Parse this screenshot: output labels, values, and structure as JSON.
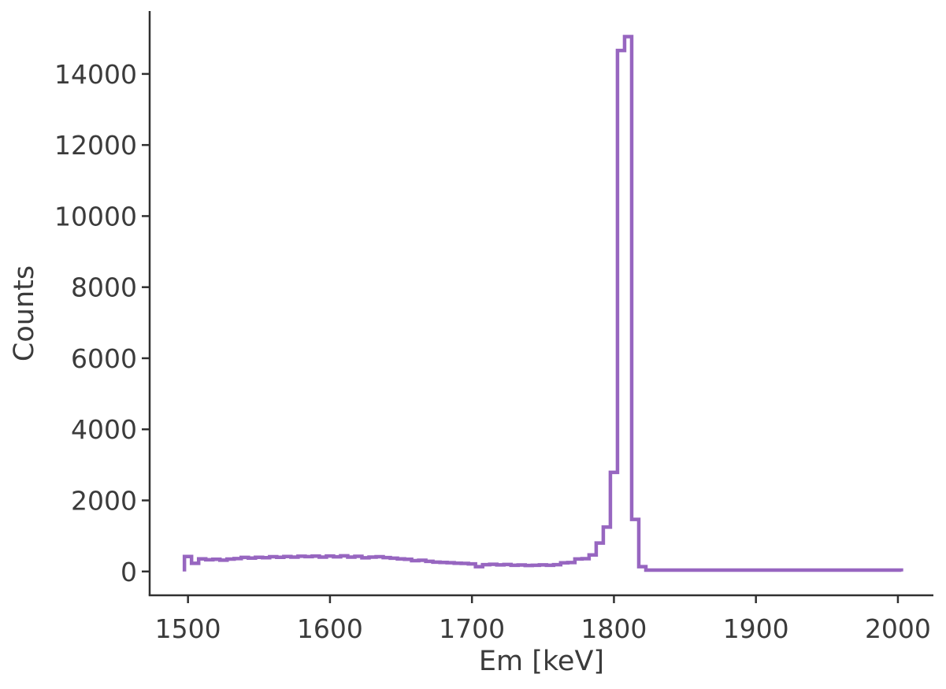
{
  "chart_data": {
    "type": "line",
    "subtype": "step-histogram",
    "title": "",
    "xlabel": "Em [keV]",
    "ylabel": "Counts",
    "legend": null,
    "grid": false,
    "xlim": [
      1473,
      2025
    ],
    "ylim": [
      -670,
      15770
    ],
    "xticks": [
      1500,
      1600,
      1700,
      1800,
      1900,
      2000
    ],
    "yticks": [
      0,
      2000,
      4000,
      6000,
      8000,
      10000,
      12000,
      14000
    ],
    "bin_width_kev": 5,
    "x_start": 1500,
    "x_step": 5,
    "x_end": 2000,
    "counts": [
      420,
      230,
      355,
      330,
      345,
      320,
      348,
      362,
      396,
      378,
      400,
      388,
      415,
      398,
      422,
      404,
      430,
      418,
      432,
      406,
      436,
      414,
      440,
      404,
      426,
      386,
      406,
      416,
      392,
      374,
      356,
      344,
      306,
      316,
      286,
      264,
      254,
      246,
      234,
      226,
      214,
      136,
      192,
      202,
      186,
      196,
      176,
      182,
      170,
      176,
      186,
      176,
      192,
      244,
      252,
      352,
      360,
      466,
      800,
      1250,
      2790,
      14660,
      15050,
      1465,
      135,
      40,
      40,
      40,
      40,
      40,
      40,
      40,
      40,
      40,
      40,
      40,
      40,
      40,
      40,
      40,
      40,
      40,
      40,
      40,
      40,
      40,
      40,
      40,
      40,
      40,
      40,
      40,
      40,
      40,
      40,
      40,
      40,
      40,
      40,
      40,
      40
    ],
    "peak": {
      "center_kev": 1808,
      "max_counts": 15050,
      "top_bins": [
        {
          "center": 1805,
          "counts": 14660
        },
        {
          "center": 1810,
          "counts": 15050
        }
      ]
    },
    "colors": {
      "line": "#9766c0",
      "text": "#3b3b3b",
      "spine": "#303030",
      "background": "#ffffff"
    }
  }
}
